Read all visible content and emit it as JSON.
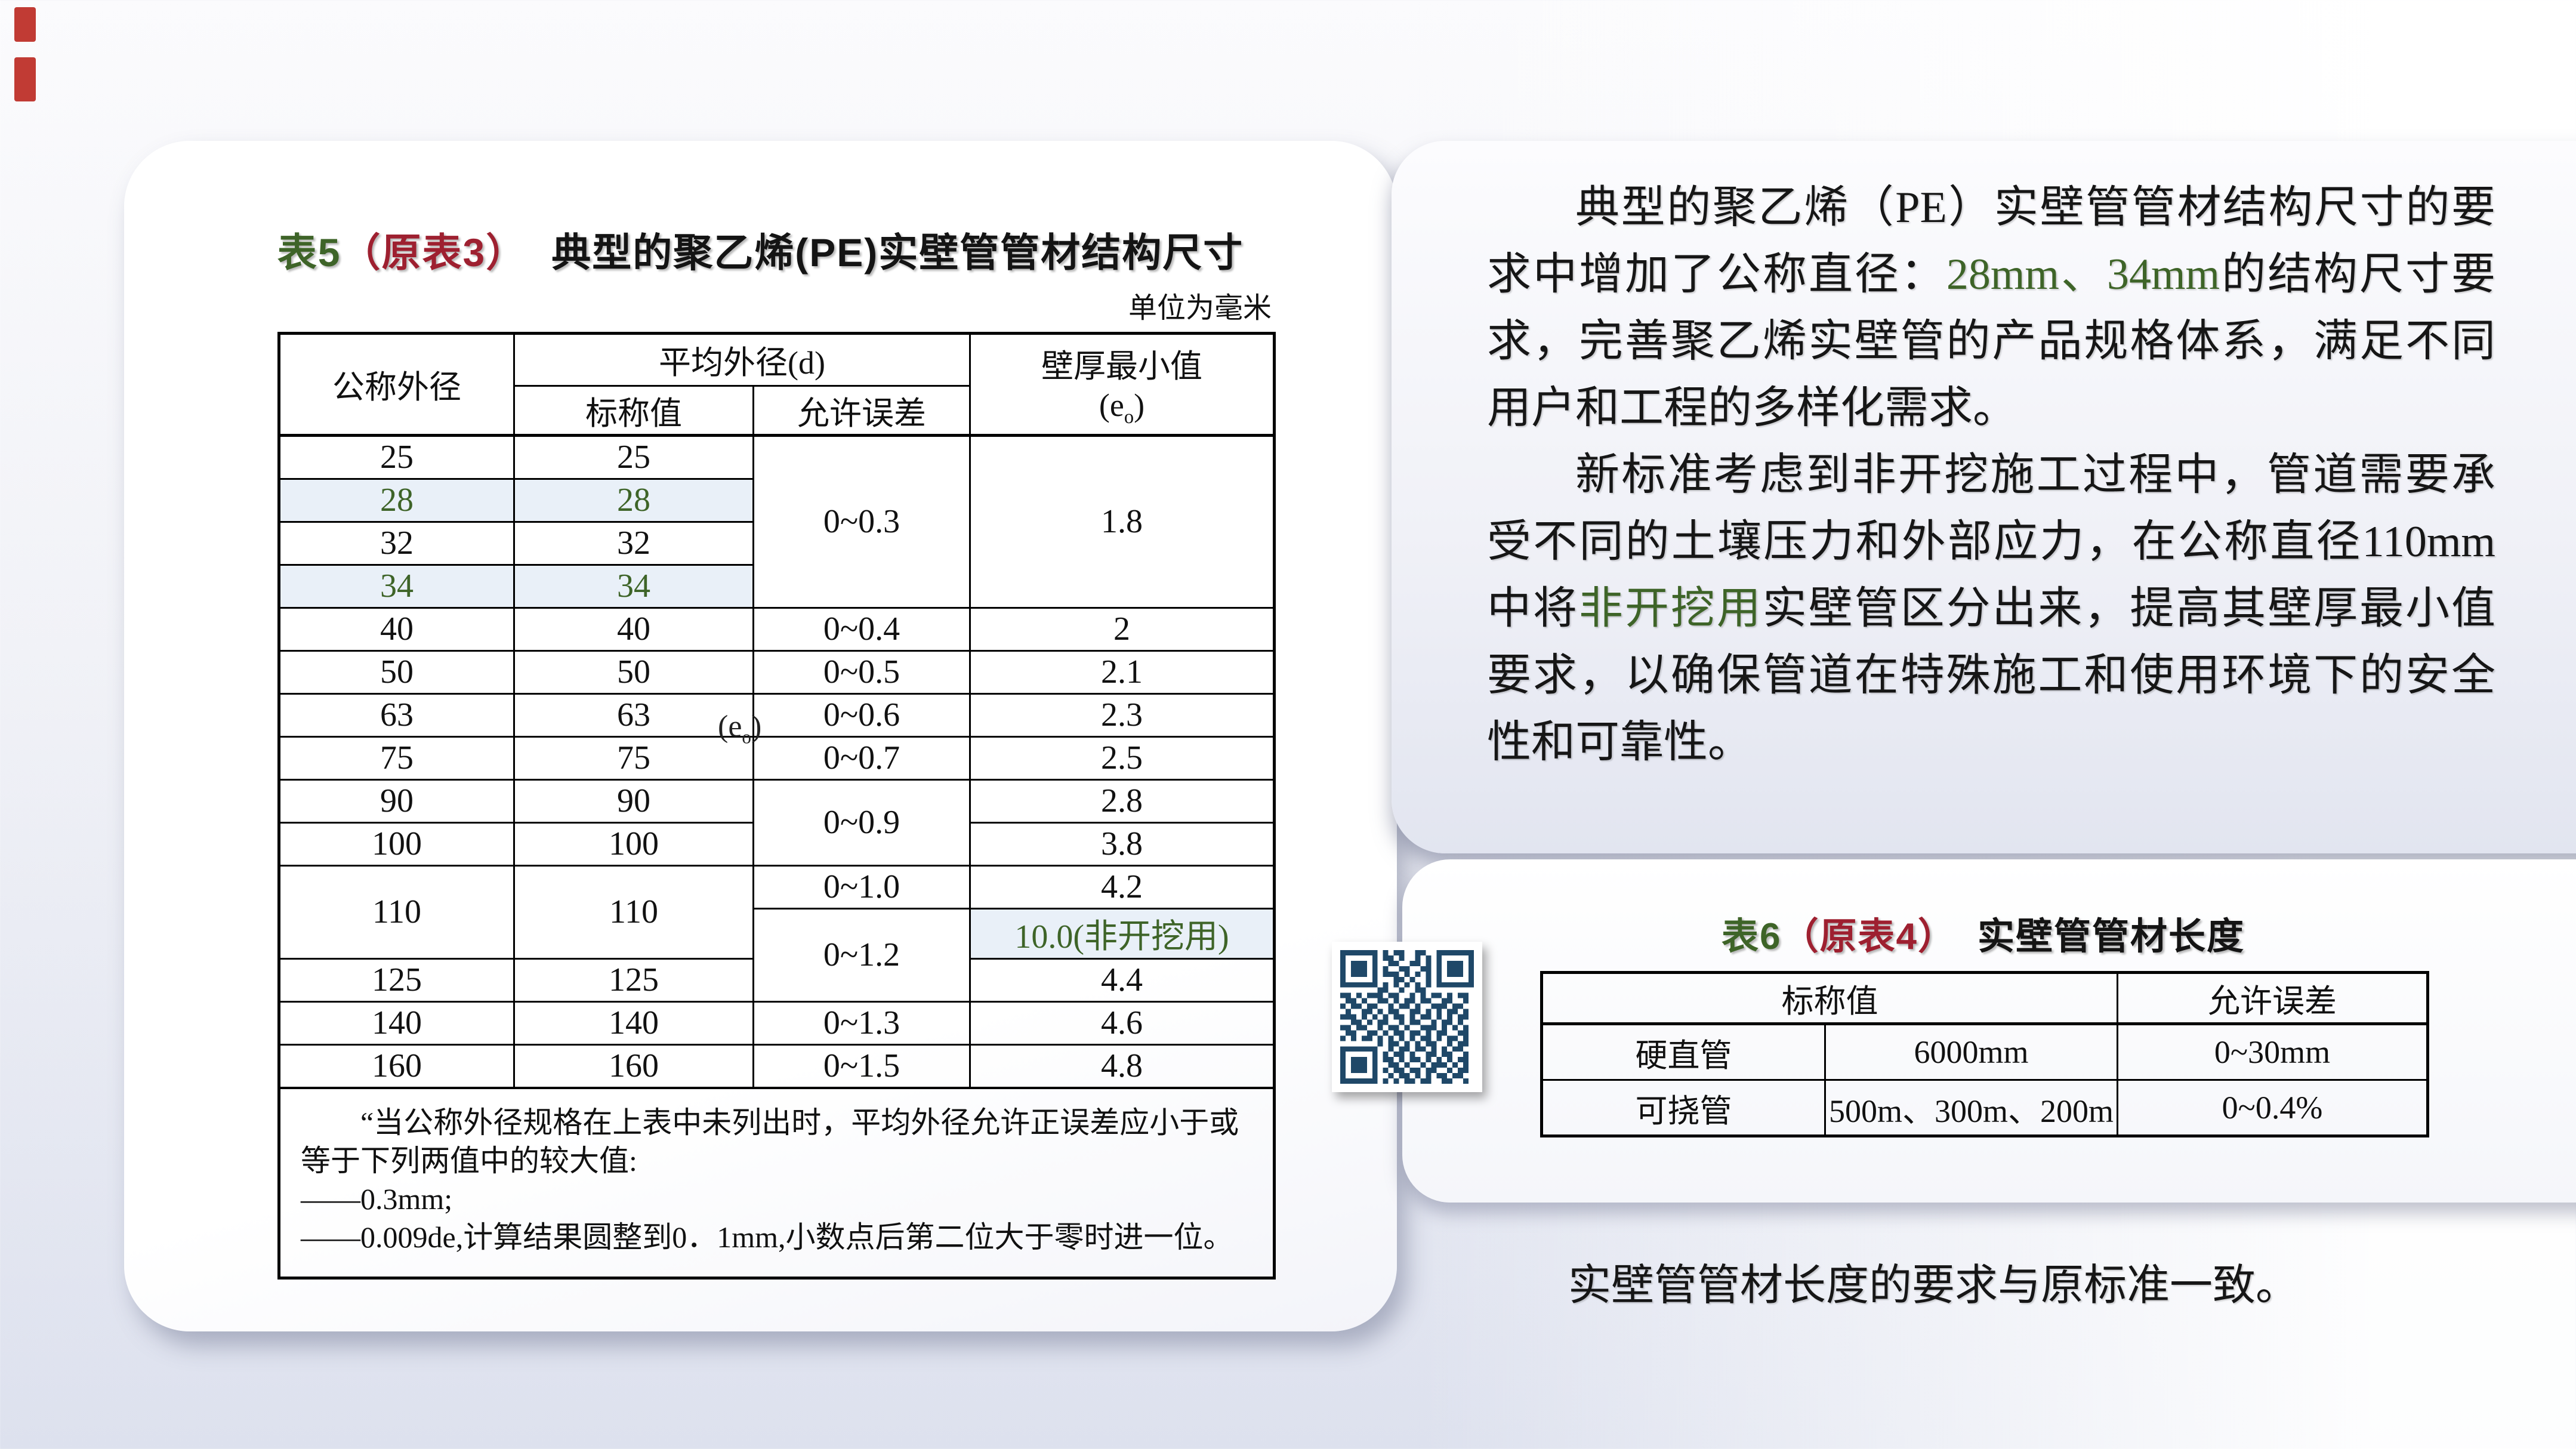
{
  "colors": {
    "green": "#3e6428",
    "dark_red": "#9e2030",
    "highlight_blue": "#e9f0f8",
    "qr_navy": "#1f4868",
    "decor_red": "#c13b34"
  },
  "table5_card": {
    "title": {
      "tag": "表5",
      "orig": "（原表3）",
      "rest": "典型的聚乙烯(PE)实壁管管材结构尺寸"
    },
    "unit_note": "单位为毫米",
    "table5": {
      "header": {
        "od": "公称外径",
        "avg_group": "平均外径(d)",
        "nominal": "标称值",
        "tolerance": "允许误差",
        "wall_l1": "壁厚最小值",
        "wall_sub_pre": "(e",
        "wall_sub": "o",
        "wall_sub_post": ")"
      },
      "stray": {
        "pre": "(e",
        "sub": "o",
        "post": ")"
      },
      "rows": [
        {
          "od": "25",
          "nominal": "25",
          "tolerance": "0~0.3",
          "wall": "1.8"
        },
        {
          "od": "28",
          "nominal": "28"
        },
        {
          "od": "32",
          "nominal": "32"
        },
        {
          "od": "34",
          "nominal": "34"
        },
        {
          "od": "40",
          "nominal": "40",
          "tolerance": "0~0.4",
          "wall": "2"
        },
        {
          "od": "50",
          "nominal": "50",
          "tolerance": "0~0.5",
          "wall": "2.1"
        },
        {
          "od": "63",
          "nominal": "63",
          "tolerance": "0~0.6",
          "wall": "2.3"
        },
        {
          "od": "75",
          "nominal": "75",
          "tolerance": "0~0.7",
          "wall": "2.5"
        },
        {
          "od": "90",
          "nominal": "90",
          "tolerance": "0~0.9",
          "wall": "2.8"
        },
        {
          "od": "100",
          "nominal": "100",
          "wall": "3.8"
        },
        {
          "od": "110",
          "nominal": "110",
          "tolerance": "0~1.0",
          "wall": "4.2"
        },
        {
          "tolerance": "0~1.2",
          "wall": "10.0(非开挖用)"
        },
        {
          "od": "125",
          "nominal": "125",
          "wall": "4.4"
        },
        {
          "od": "140",
          "nominal": "140",
          "tolerance": "0~1.3",
          "wall": "4.6"
        },
        {
          "od": "160",
          "nominal": "160",
          "tolerance": "0~1.5",
          "wall": "4.8"
        }
      ],
      "footnote": {
        "line1": "“当公称外径规格在上表中未列出时，平均外径允许正误差应小于或等于下列两值中的较大值:",
        "item1": "——0.3mm;",
        "item2": "——0.009de,计算结果圆整到0．1mm,小数点后第二位大于零时进一位。"
      }
    }
  },
  "text_card": {
    "para1": {
      "p1": "典型的聚乙烯（PE）实壁管管材结构尺寸的要求中增加了公称直径：",
      "hl": "28mm、34mm",
      "p2": "的结构尺寸要求，完善聚乙烯实壁管的产品规格体系，满足不同用户和工程的多样化需求。"
    },
    "para2": {
      "p1": "新标准考虑到非开挖施工过程中，管道需要承受不同的土壤压力和外部应力，在公称直径110mm中将",
      "hl": "非开挖用",
      "p2": "实壁管区分出来，提高其壁厚最小值要求，以确保管道在特殊施工和使用环境下的安全性和可靠性。"
    }
  },
  "table6_card": {
    "title": {
      "tag": "表6",
      "orig": "（原表4）",
      "rest": "实壁管管材长度"
    },
    "table6": {
      "header": {
        "nominal": "标称值",
        "tolerance": "允许误差"
      },
      "rows": [
        {
          "type": "硬直管",
          "value": "6000mm",
          "tolerance": "0~30mm"
        },
        {
          "type": "可挠管",
          "value": "500m、300m、200m",
          "tolerance": "0~0.4%"
        }
      ]
    },
    "note": "实壁管管材长度的要求与原标准一致。"
  },
  "qr": {
    "rows": [
      "1111111010110011001111111",
      "1000001011010010101000001",
      "1011101001100110101011101",
      "1011101010011001101011101",
      "1011101011101010101011101",
      "1000001000110100101000001",
      "1111111010101010101111111",
      "0000000110010011000000000",
      "1101011101100101011010110",
      "0110100110101101100110010",
      "1011011001011010011101100",
      "0100110101100110101011010",
      "1110101010110101101010110",
      "0011010110010110010110100",
      "1101100101101001110101010",
      "0110011010110110101100110",
      "1010110101010101101011010",
      "0000000101101010110010110",
      "1111111001011011010101100",
      "1000001010110100110110010",
      "1011101011010110101010110",
      "1011101001101001011101010",
      "1011101010110110110010110",
      "1000001001011010101101100",
      "1111111010101101100110010"
    ]
  }
}
